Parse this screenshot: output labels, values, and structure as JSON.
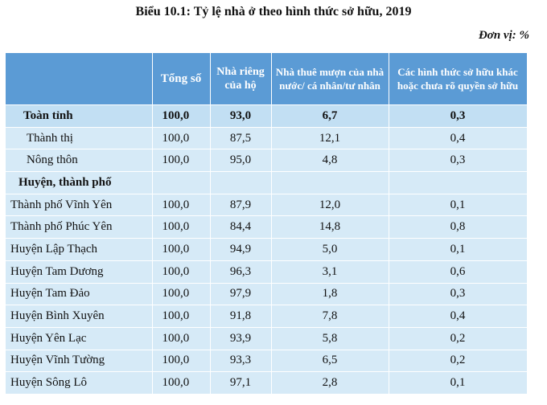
{
  "title": "Biểu 10.1: Tỷ lệ nhà ở theo hình thức sở hữu, 2019",
  "unit": "Đơn vị: %",
  "headers": {
    "col0": "",
    "col1": "Tổng số",
    "col2": "Nhà riêng của hộ",
    "col3": "Nhà thuê mượn của nhà nước/ cá nhân/tư nhân",
    "col4": "Các hình thức sở hữu khác hoặc chưa rõ quyền sở hữu"
  },
  "rows": [
    {
      "name": "Toàn tỉnh",
      "total": "100,0",
      "own": "93,0",
      "rent": "6,7",
      "other": "0,3"
    },
    {
      "name": "Thành thị",
      "total": "100,0",
      "own": "87,5",
      "rent": "12,1",
      "other": "0,4"
    },
    {
      "name": "Nông thôn",
      "total": "100,0",
      "own": "95,0",
      "rent": "4,8",
      "other": "0,3"
    },
    {
      "name": "Huyện, thành phố",
      "total": "",
      "own": "",
      "rent": "",
      "other": ""
    },
    {
      "name": "Thành phố Vĩnh Yên",
      "total": "100,0",
      "own": "87,9",
      "rent": "12,0",
      "other": "0,1"
    },
    {
      "name": "Thành phố Phúc Yên",
      "total": "100,0",
      "own": "84,4",
      "rent": "14,8",
      "other": "0,8"
    },
    {
      "name": "Huyện Lập Thạch",
      "total": "100,0",
      "own": "94,9",
      "rent": "5,0",
      "other": "0,1"
    },
    {
      "name": "Huyện Tam Dương",
      "total": "100,0",
      "own": "96,3",
      "rent": "3,1",
      "other": "0,6"
    },
    {
      "name": "Huyện Tam Đảo",
      "total": "100,0",
      "own": "97,9",
      "rent": "1,8",
      "other": "0,3"
    },
    {
      "name": "Huyện Bình Xuyên",
      "total": "100,0",
      "own": "91,8",
      "rent": "7,8",
      "other": "0,4"
    },
    {
      "name": "Huyện Yên Lạc",
      "total": "100,0",
      "own": "93,9",
      "rent": "5,8",
      "other": "0,2"
    },
    {
      "name": "Huyện Vĩnh Tường",
      "total": "100,0",
      "own": "93,3",
      "rent": "6,5",
      "other": "0,2"
    },
    {
      "name": "Huyện Sông Lô",
      "total": "100,0",
      "own": "97,1",
      "rent": "2,8",
      "other": "0,1"
    }
  ],
  "colors": {
    "header": "#5b9bd5",
    "row": "#d6eaf7",
    "total_row": "#c2dff3"
  }
}
